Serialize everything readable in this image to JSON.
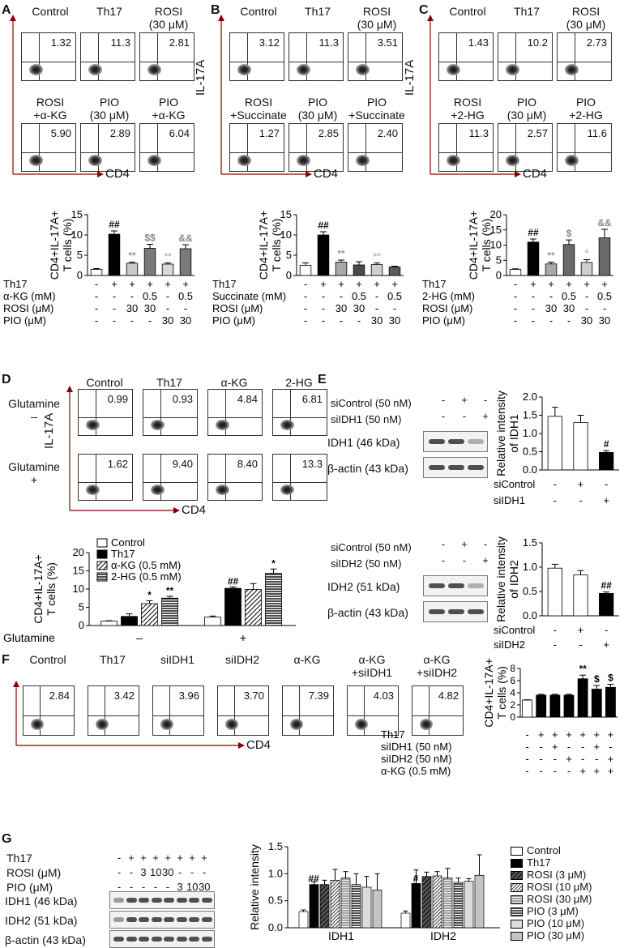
{
  "panel_letters": [
    "A",
    "B",
    "C",
    "D",
    "E",
    "F",
    "G"
  ],
  "A": {
    "headers_top": [
      "Control",
      "Th17",
      "ROSI\n(30 μM)"
    ],
    "headers_bottom": [
      "ROSI\n+α-KG",
      "PIO\n(30 μM)",
      "PIO\n+α-KG"
    ],
    "values": [
      "1.32",
      "11.3",
      "2.81",
      "5.90",
      "2.89",
      "6.04"
    ],
    "y_axis": "IL-17A",
    "x_axis": "CD4"
  },
  "B": {
    "headers_top": [
      "Control",
      "Th17",
      "ROSI\n(30 μM)"
    ],
    "headers_bottom": [
      "ROSI\n+Succinate",
      "PIO\n(30 μM)",
      "PIO\n+Succinate"
    ],
    "values": [
      "3.12",
      "11.3",
      "3.51",
      "1.27",
      "2.85",
      "2.40"
    ],
    "y_axis": "IL-17A",
    "x_axis": "CD4"
  },
  "C": {
    "headers_top": [
      "Control",
      "Th17",
      "ROSI\n(30 μM)"
    ],
    "headers_bottom": [
      "ROSI\n+2-HG",
      "PIO\n(30 μM)",
      "PIO\n+2-HG"
    ],
    "values": [
      "1.43",
      "10.2",
      "2.73",
      "11.3",
      "2.57",
      "11.6"
    ],
    "y_axis": "IL-17A",
    "x_axis": "CD4"
  },
  "chart_data": [
    {
      "id": "A-bar",
      "type": "bar",
      "ylabel": "CD4+IL-17A+ T cells (%)",
      "ylim": [
        0,
        15
      ],
      "yticks": [
        0,
        5,
        10,
        15
      ],
      "values": [
        1.5,
        10.2,
        3.0,
        6.7,
        2.8,
        6.6
      ],
      "errors": [
        0.2,
        0.8,
        0.3,
        1.0,
        0.3,
        1.0
      ],
      "colors": [
        "#ffffff",
        "#000000",
        "#c8c8c8",
        "#7a7a7a",
        "#d8d8d8",
        "#7a7a7a"
      ],
      "annotations": [
        "",
        "##",
        "**",
        "$$",
        "**",
        "&&"
      ],
      "annotation_colors": [
        "#000",
        "#000",
        "#999",
        "#888",
        "#bbb",
        "#888"
      ],
      "table": [
        {
          "label": "Th17",
          "cells": [
            "-",
            "+",
            "+",
            "+",
            "+",
            "+"
          ]
        },
        {
          "label": "α-KG (mM)",
          "cells": [
            "-",
            "-",
            "-",
            "0.5",
            "-",
            "0.5"
          ]
        },
        {
          "label": "ROSI (μM)",
          "cells": [
            "-",
            "-",
            "30",
            "30",
            "-",
            "-"
          ]
        },
        {
          "label": "PIO (μM)",
          "cells": [
            "-",
            "-",
            "-",
            "-",
            "30",
            "30"
          ]
        }
      ]
    },
    {
      "id": "B-bar",
      "type": "bar",
      "ylabel": "CD4+IL-17A+ T cells (%)",
      "ylim": [
        0,
        15
      ],
      "yticks": [
        0,
        5,
        10,
        15
      ],
      "values": [
        2.5,
        10.0,
        3.3,
        2.6,
        2.7,
        2.1
      ],
      "errors": [
        0.6,
        0.8,
        0.5,
        0.8,
        0.4,
        0.2
      ],
      "colors": [
        "#ffffff",
        "#000000",
        "#a8a8a8",
        "#4a4a4a",
        "#d0d0d0",
        "#5a5a5a"
      ],
      "annotations": [
        "",
        "##",
        "**",
        "",
        "**",
        ""
      ],
      "annotation_colors": [
        "#000",
        "#000",
        "#999",
        "#000",
        "#bbb",
        "#000"
      ],
      "table": [
        {
          "label": "Th17",
          "cells": [
            "-",
            "+",
            "+",
            "+",
            "+",
            "+"
          ]
        },
        {
          "label": "Succinate (mM)",
          "cells": [
            "-",
            "-",
            "-",
            "0.5",
            "-",
            "0.5"
          ]
        },
        {
          "label": "ROSI (μM)",
          "cells": [
            "-",
            "-",
            "30",
            "30",
            "-",
            "-"
          ]
        },
        {
          "label": "PIO (μM)",
          "cells": [
            "-",
            "-",
            "-",
            "-",
            "30",
            "30"
          ]
        }
      ]
    },
    {
      "id": "C-bar",
      "type": "bar",
      "ylabel": "CD4+IL-17A+ T cells (%)",
      "ylim": [
        0,
        20
      ],
      "yticks": [
        0,
        5,
        10,
        15,
        20
      ],
      "values": [
        2.0,
        11.0,
        3.8,
        10.2,
        4.3,
        12.4
      ],
      "errors": [
        0.2,
        1.0,
        0.6,
        1.5,
        0.9,
        2.8
      ],
      "colors": [
        "#ffffff",
        "#000000",
        "#a8a8a8",
        "#6a6a6a",
        "#cfcfcf",
        "#6a6a6a"
      ],
      "annotations": [
        "",
        "##",
        "**",
        "$",
        "*",
        "&&"
      ],
      "annotation_colors": [
        "#000",
        "#000",
        "#999",
        "#888",
        "#bbb",
        "#888"
      ],
      "table": [
        {
          "label": "Th17",
          "cells": [
            "-",
            "+",
            "+",
            "+",
            "+",
            "+"
          ]
        },
        {
          "label": "2-HG (mM)",
          "cells": [
            "-",
            "-",
            "-",
            "0.5",
            "-",
            "0.5"
          ]
        },
        {
          "label": "ROSI (μM)",
          "cells": [
            "-",
            "-",
            "30",
            "30",
            "-",
            "-"
          ]
        },
        {
          "label": "PIO (μM)",
          "cells": [
            "-",
            "-",
            "-",
            "-",
            "30",
            "30"
          ]
        }
      ]
    },
    {
      "id": "D-bar",
      "type": "bar",
      "ylabel": "CD4+IL-17A+ T cells (%)",
      "ylim": [
        0,
        20
      ],
      "yticks": [
        0,
        5,
        10,
        15,
        20
      ],
      "groups": [
        "–",
        "+"
      ],
      "xlabel": "Glutamine",
      "series": [
        {
          "name": "Control",
          "values": [
            1.2,
            2.3
          ],
          "errors": [
            0.1,
            0.3
          ]
        },
        {
          "name": "Th17",
          "values": [
            2.5,
            10.2
          ],
          "errors": [
            0.7,
            0.4
          ]
        },
        {
          "name": "α-KG (0.5 mM)",
          "values": [
            6.0,
            9.9
          ],
          "errors": [
            0.8,
            1.6
          ]
        },
        {
          "name": "2-HG (0.5 mM)",
          "values": [
            7.5,
            14.3
          ],
          "errors": [
            0.5,
            1.2
          ]
        }
      ],
      "annotations": [
        [
          "",
          "",
          "*",
          "**"
        ],
        [
          "",
          "##",
          "",
          "*"
        ]
      ]
    },
    {
      "id": "E1-bar",
      "type": "bar",
      "ylabel": "Relative intensity of IDH1",
      "ylim": [
        0,
        2.0
      ],
      "yticks": [
        0.0,
        0.5,
        1.0,
        1.5,
        2.0
      ],
      "values": [
        1.47,
        1.3,
        0.48
      ],
      "errors": [
        0.25,
        0.2,
        0.05
      ],
      "colors": [
        "#ffffff",
        "#ffffff",
        "#000000"
      ],
      "annotations": [
        "",
        "",
        "#"
      ],
      "table": [
        {
          "label": "siControl",
          "cells": [
            "-",
            "+",
            "-"
          ]
        },
        {
          "label": "siIDH1",
          "cells": [
            "-",
            "-",
            "+"
          ]
        }
      ]
    },
    {
      "id": "E2-bar",
      "type": "bar",
      "ylabel": "Relative intensity of IDH2",
      "ylim": [
        0,
        1.5
      ],
      "yticks": [
        0.0,
        0.5,
        1.0,
        1.5
      ],
      "values": [
        0.98,
        0.84,
        0.46
      ],
      "errors": [
        0.08,
        0.09,
        0.03
      ],
      "colors": [
        "#ffffff",
        "#ffffff",
        "#000000"
      ],
      "annotations": [
        "",
        "",
        "##"
      ],
      "table": [
        {
          "label": "siControl",
          "cells": [
            "-",
            "+",
            "-"
          ]
        },
        {
          "label": "siIDH2",
          "cells": [
            "-",
            "-",
            "+"
          ]
        }
      ]
    },
    {
      "id": "F-bar",
      "type": "bar",
      "ylabel": "CD4+IL-17A+ T cells (%)",
      "ylim": [
        0,
        8
      ],
      "yticks": [
        0,
        2,
        4,
        6,
        8
      ],
      "values": [
        2.8,
        3.6,
        3.6,
        3.6,
        6.3,
        4.6,
        4.9
      ],
      "errors": [
        0.05,
        0.15,
        0.15,
        0.15,
        0.6,
        0.6,
        0.5
      ],
      "colors": [
        "#ffffff",
        "#000000",
        "#000000",
        "#000000",
        "#000000",
        "#000000",
        "#000000"
      ],
      "annotations": [
        "",
        "",
        "",
        "",
        "**",
        "$",
        "$"
      ],
      "table": [
        {
          "label": "Th17",
          "cells": [
            "-",
            "+",
            "+",
            "+",
            "+",
            "+",
            "+"
          ]
        },
        {
          "label": "siIDH1 (50 nM)",
          "cells": [
            "-",
            "-",
            "+",
            "-",
            "-",
            "+",
            "-"
          ]
        },
        {
          "label": "siIDH2 (50 nM)",
          "cells": [
            "-",
            "-",
            "-",
            "+",
            "-",
            "-",
            "+"
          ]
        },
        {
          "label": "α-KG (0.5 mM)",
          "cells": [
            "-",
            "-",
            "-",
            "-",
            "+",
            "+",
            "+"
          ]
        }
      ]
    },
    {
      "id": "G-bar",
      "type": "bar",
      "ylabel": "Relative intensity",
      "ylim": [
        0,
        1.5
      ],
      "yticks": [
        0.0,
        0.5,
        1.0,
        1.5
      ],
      "groups": [
        "IDH1",
        "IDH2"
      ],
      "series": [
        {
          "name": "Control",
          "values": [
            0.3,
            0.27
          ],
          "errors": [
            0.03,
            0.04
          ]
        },
        {
          "name": "Th17",
          "values": [
            0.8,
            0.82
          ],
          "errors": [
            0.05,
            0.25
          ]
        },
        {
          "name": "ROSI (3 μM)",
          "values": [
            0.8,
            0.95
          ],
          "errors": [
            0.08,
            0.08
          ]
        },
        {
          "name": "ROSI (10 μM)",
          "values": [
            0.88,
            0.96
          ],
          "errors": [
            0.2,
            0.08
          ]
        },
        {
          "name": "ROSI (30 μM)",
          "values": [
            0.92,
            0.92
          ],
          "errors": [
            0.12,
            0.18
          ]
        },
        {
          "name": "PIO (3 μM)",
          "values": [
            0.8,
            0.84
          ],
          "errors": [
            0.2,
            0.08
          ]
        },
        {
          "name": "PIO (10 μM)",
          "values": [
            0.75,
            0.86
          ],
          "errors": [
            0.2,
            0.05
          ]
        },
        {
          "name": "PIO (30 μM)",
          "values": [
            0.7,
            0.97
          ],
          "errors": [
            0.3,
            0.38
          ]
        }
      ],
      "annotations": [
        "##",
        "#"
      ]
    }
  ],
  "D": {
    "headers": [
      "Control",
      "Th17",
      "α-KG",
      "2-HG"
    ],
    "row_labels": [
      "Glutamine\n–",
      "Glutamine\n+"
    ],
    "values": [
      "0.99",
      "0.93",
      "4.84",
      "6.81",
      "1.62",
      "9.40",
      "8.40",
      "13.3"
    ],
    "y_axis": "IL-17A",
    "x_axis": "CD4"
  },
  "E": {
    "top": {
      "rows": [
        "siControl (50 nM)",
        "siIDH1 (50 nM)"
      ],
      "row_cells": [
        [
          "-",
          "+",
          "-"
        ],
        [
          "-",
          "-",
          "+"
        ]
      ],
      "blots": [
        "IDH1 (46 kDa)",
        "β-actin (43 kDa)"
      ]
    },
    "bottom": {
      "rows": [
        "siControl (50 nM)",
        "siIDH2 (50 nM)"
      ],
      "row_cells": [
        [
          "-",
          "+",
          "-"
        ],
        [
          "-",
          "-",
          "+"
        ]
      ],
      "blots": [
        "IDH2 (51 kDa)",
        "β-actin (43 kDa)"
      ]
    }
  },
  "F": {
    "headers": [
      "Control",
      "Th17",
      "siIDH1",
      "siIDH2",
      "α-KG",
      "α-KG\n+siIDH1",
      "α-KG\n+siIDH2"
    ],
    "values": [
      "2.84",
      "3.42",
      "3.96",
      "3.70",
      "7.39",
      "4.03",
      "4.82"
    ],
    "y_axis": "IL-17A",
    "x_axis": "CD4"
  },
  "G": {
    "rows": [
      {
        "label": "Th17",
        "cells": [
          "-",
          "+",
          "+",
          "+",
          "+",
          "+",
          "+",
          "+"
        ]
      },
      {
        "label": "ROSI (μM)",
        "cells": [
          "-",
          "-",
          "3",
          "10",
          "30",
          "-",
          "-",
          "-"
        ]
      },
      {
        "label": "PIO (μM)",
        "cells": [
          "-",
          "-",
          "-",
          "-",
          "-",
          "3",
          "10",
          "30"
        ]
      }
    ],
    "blots": [
      "IDH1 (46 kDa)",
      "IDH2 (51 kDa)",
      "β-actin (43 kDa)"
    ],
    "legend": [
      "Control",
      "Th17",
      "ROSI (3 μM)",
      "ROSI (10 μM)",
      "ROSI (30 μM)",
      "PIO (3 μM)",
      "PIO (10 μM)",
      "PIO (30 μM)"
    ]
  }
}
